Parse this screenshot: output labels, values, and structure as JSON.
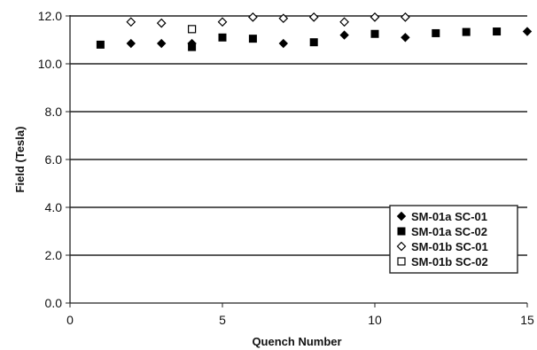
{
  "chart_data": {
    "type": "scatter",
    "title": "",
    "xlabel": "Quench Number",
    "ylabel": "Field (Tesla)",
    "xlim": [
      0,
      15
    ],
    "ylim": [
      0,
      12
    ],
    "x_ticks": [
      0,
      5,
      10,
      15
    ],
    "x_tick_labels": [
      "0",
      "5",
      "10",
      "15"
    ],
    "y_ticks": [
      0,
      2,
      4,
      6,
      8,
      10,
      12
    ],
    "y_tick_labels": [
      "0.0",
      "2.0",
      "4.0",
      "6.0",
      "8.0",
      "10.0",
      "12.0"
    ],
    "grid": "horizontal",
    "legend_position": "bottom-right",
    "series": [
      {
        "name": "SM-01a SC-01",
        "marker": "filled-diamond",
        "color": "#000000",
        "x": [
          2,
          3,
          4,
          7,
          9,
          11,
          15
        ],
        "y": [
          10.85,
          10.85,
          10.85,
          10.85,
          11.2,
          11.1,
          11.35
        ]
      },
      {
        "name": "SM-01a SC-02",
        "marker": "filled-square",
        "color": "#000000",
        "x": [
          1,
          4,
          5,
          6,
          8,
          10,
          12,
          13,
          14
        ],
        "y": [
          10.8,
          10.7,
          11.1,
          11.05,
          10.9,
          11.25,
          11.28,
          11.33,
          11.35
        ]
      },
      {
        "name": "SM-01b SC-01",
        "marker": "open-diamond",
        "color": "#000000",
        "x": [
          2,
          3,
          5,
          6,
          7,
          8,
          9,
          10,
          11
        ],
        "y": [
          11.75,
          11.7,
          11.75,
          11.95,
          11.9,
          11.95,
          11.75,
          11.95,
          11.95
        ]
      },
      {
        "name": "SM-01b SC-02",
        "marker": "open-square",
        "color": "#000000",
        "x": [
          4
        ],
        "y": [
          11.45
        ]
      }
    ]
  }
}
